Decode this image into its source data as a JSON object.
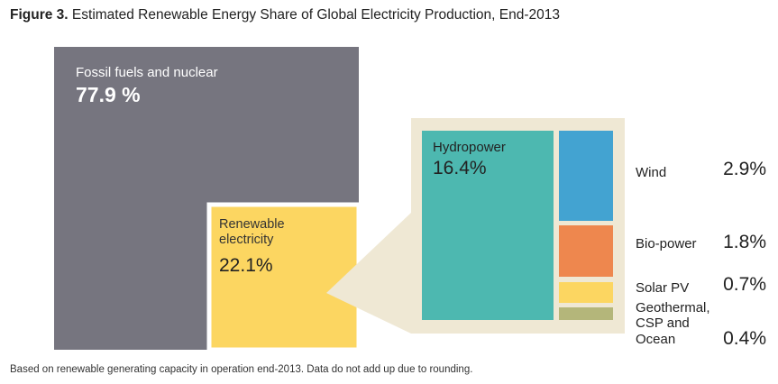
{
  "figure_label": "Figure 3.",
  "title": "Estimated Renewable Energy Share of Global Electricity Production, End-2013",
  "footnote": "Based on renewable generating capacity in operation end-2013. Data do not add up due to rounding.",
  "colors": {
    "fossil": "#76757f",
    "renewable": "#fcd661",
    "panel": "#efe8d4",
    "hydro": "#4db8b0",
    "wind": "#43a3d1",
    "bio": "#ee874e",
    "solar": "#fcd661",
    "geo": "#b4b67a"
  },
  "chart_data": {
    "type": "treemap",
    "title": "Estimated Renewable Energy Share of Global Electricity Production, End-2013",
    "unit": "%",
    "segments": [
      {
        "id": "fossil",
        "label": "Fossil fuels and nuclear",
        "value": 77.9,
        "value_label": "77.9 %"
      },
      {
        "id": "renewable",
        "label": "Renewable electricity",
        "value": 22.1,
        "value_label": "22.1%",
        "breakdown": [
          {
            "id": "hydro",
            "label": "Hydropower",
            "value": 16.4,
            "value_label": "16.4%"
          },
          {
            "id": "wind",
            "label": "Wind",
            "value": 2.9,
            "value_label": "2.9%"
          },
          {
            "id": "bio",
            "label": "Bio-power",
            "value": 1.8,
            "value_label": "1.8%"
          },
          {
            "id": "solar",
            "label": "Solar PV",
            "value": 0.7,
            "value_label": "0.7%"
          },
          {
            "id": "geo",
            "label": "Geothermal, CSP and Ocean",
            "value": 0.4,
            "value_label": "0.4%"
          }
        ]
      }
    ]
  }
}
